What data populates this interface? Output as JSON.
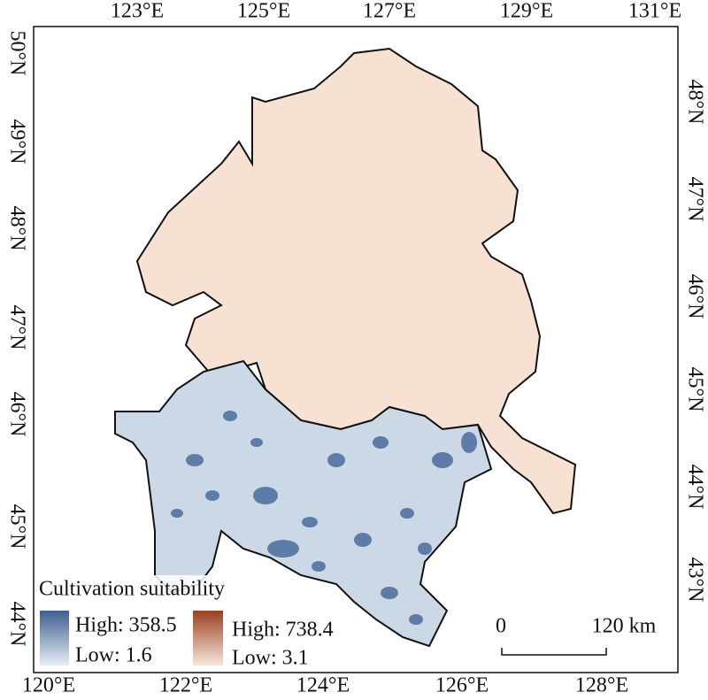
{
  "map": {
    "top_labels": [
      "123°E",
      "125°E",
      "127°E",
      "129°E",
      "131°E"
    ],
    "bottom_labels": [
      "120°E",
      "122°E",
      "124°E",
      "126°E",
      "128°E"
    ],
    "left_labels": [
      "50°N",
      "49°N",
      "48°N",
      "47°N",
      "46°N",
      "45°N",
      "44°N"
    ],
    "right_labels": [
      "48°N",
      "47°N",
      "46°N",
      "45°N",
      "44°N",
      "43°N"
    ],
    "legend": {
      "title": "Cultivation suitability",
      "blue_high": "High: 358.5",
      "blue_low": "Low: 1.6",
      "brown_high": "High: 738.4",
      "brown_low": "Low: 3.1"
    },
    "scale_bar": {
      "start": "0",
      "end": "120 km"
    }
  }
}
